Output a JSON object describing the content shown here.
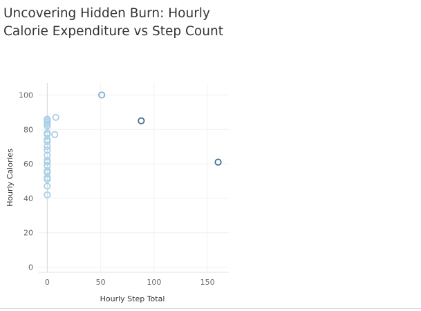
{
  "chart_data": {
    "type": "scatter",
    "title": "Uncovering Hidden Burn: Hourly\nCalorie Expenditure vs Step Count",
    "xlabel": "Hourly Step Total",
    "ylabel": "Hourly Calories",
    "xlim": [
      -8,
      170
    ],
    "ylim": [
      -3,
      107
    ],
    "xticks": [
      0,
      50,
      100,
      150
    ],
    "yticks": [
      0,
      20,
      40,
      60,
      80,
      100
    ],
    "grid": true,
    "legend": "none",
    "colors": {
      "light": "#a9cfe6",
      "medium": "#7eaed0",
      "dark": "#3f6f93"
    },
    "points": [
      {
        "x": 0,
        "y": 42
      },
      {
        "x": 0,
        "y": 47
      },
      {
        "x": 0,
        "y": 51
      },
      {
        "x": 0,
        "y": 52
      },
      {
        "x": 0,
        "y": 55
      },
      {
        "x": 0,
        "y": 56
      },
      {
        "x": 0,
        "y": 59
      },
      {
        "x": 0,
        "y": 61
      },
      {
        "x": 0,
        "y": 62
      },
      {
        "x": 0,
        "y": 65
      },
      {
        "x": 0,
        "y": 68
      },
      {
        "x": 0,
        "y": 70
      },
      {
        "x": 0,
        "y": 73
      },
      {
        "x": 0,
        "y": 74
      },
      {
        "x": 0,
        "y": 77
      },
      {
        "x": 0,
        "y": 78
      },
      {
        "x": 0,
        "y": 82
      },
      {
        "x": 0,
        "y": 83
      },
      {
        "x": 0,
        "y": 84
      },
      {
        "x": 0,
        "y": 85
      },
      {
        "x": 0,
        "y": 86
      },
      {
        "x": 7,
        "y": 77
      },
      {
        "x": 8,
        "y": 87
      },
      {
        "x": 51,
        "y": 100
      },
      {
        "x": 88,
        "y": 85
      },
      {
        "x": 160,
        "y": 61
      }
    ]
  }
}
